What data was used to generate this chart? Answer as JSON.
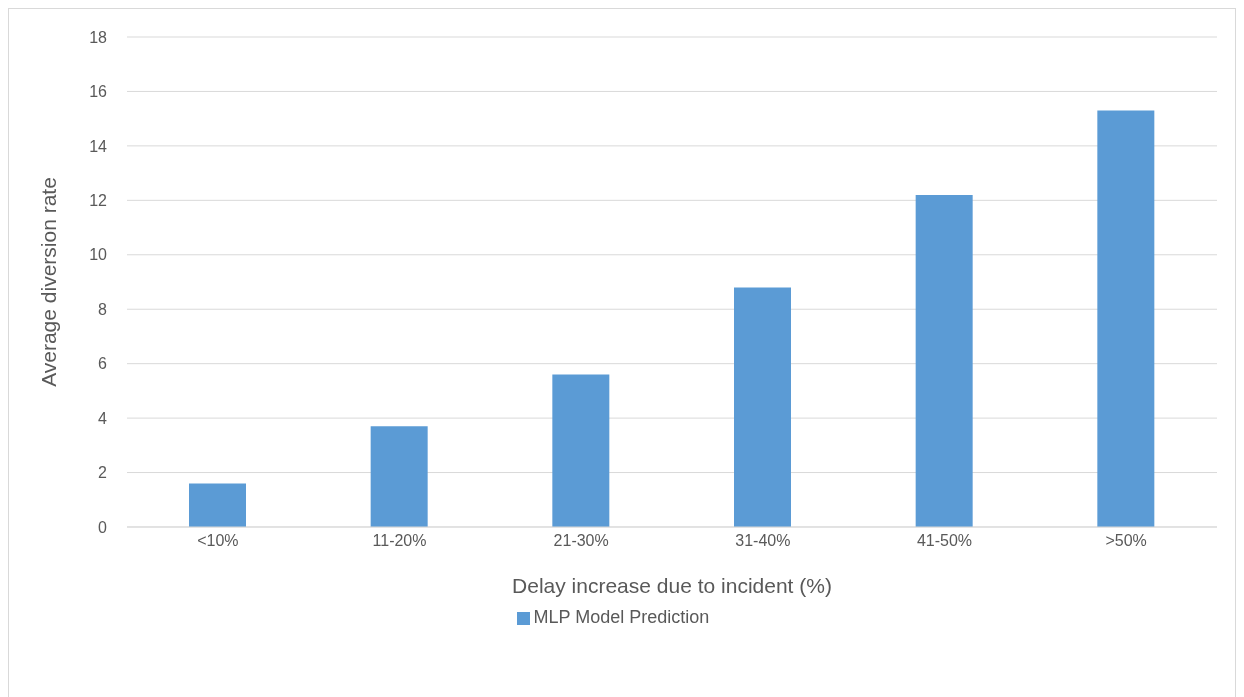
{
  "chart_data": {
    "type": "bar",
    "xlabel": "Delay increase due to incident (%)",
    "ylabel": "Average diversion rate",
    "categories": [
      "<10%",
      "11-20%",
      "21-30%",
      "31-40%",
      "41-50%",
      ">50%"
    ],
    "series": [
      {
        "name": "MLP Model Prediction",
        "color": "#5b9bd5",
        "values": [
          1.6,
          3.7,
          5.6,
          8.8,
          12.2,
          15.3
        ]
      }
    ],
    "ylim": [
      0,
      18
    ],
    "yticks": [
      0,
      2,
      4,
      6,
      8,
      10,
      12,
      14,
      16,
      18
    ],
    "grid": "y",
    "legend": "bottom"
  }
}
